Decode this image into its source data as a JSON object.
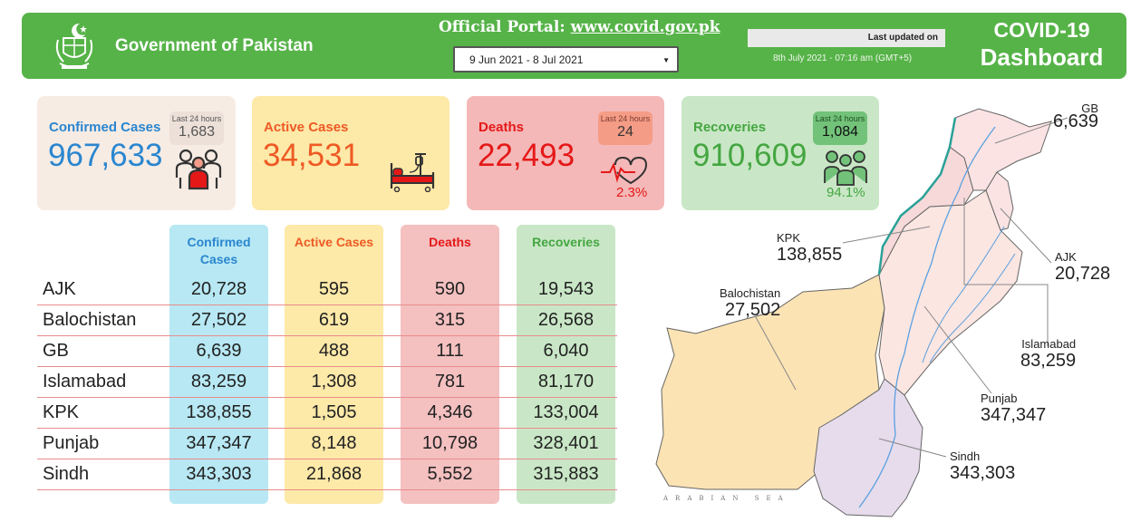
{
  "header": {
    "gov_title": "Government of Pakistan",
    "portal_label": "Official Portal:",
    "portal_url": "www.covid.gov.pk",
    "date_range": "9 Jun 2021 - 8 Jul 2021",
    "last_updated_label": "Last updated on",
    "last_updated_time": "8th July 2021 - 07:16 am (GMT+5)",
    "title_line1": "COVID-19",
    "title_line2": "Dashboard",
    "bg_color": "#56b348"
  },
  "cards": {
    "confirmed": {
      "label": "Confirmed Cases",
      "value": "967,633",
      "last24_label": "Last 24 hours",
      "last24_value": "1,683"
    },
    "active": {
      "label": "Active Cases",
      "value": "34,531"
    },
    "deaths": {
      "label": "Deaths",
      "value": "22,493",
      "last24_label": "Last 24 hours",
      "last24_value": "24",
      "percent": "2.3%"
    },
    "recoveries": {
      "label": "Recoveries",
      "value": "910,609",
      "last24_label": "Last 24 hours",
      "last24_value": "1,084",
      "percent": "94.1%"
    }
  },
  "table": {
    "headers": {
      "confirmed": "Confirmed Cases",
      "active": "Active Cases",
      "deaths": "Deaths",
      "recoveries": "Recoveries"
    },
    "rows": [
      {
        "region": "AJK",
        "confirmed": "20,728",
        "active": "595",
        "deaths": "590",
        "recoveries": "19,543"
      },
      {
        "region": "Balochistan",
        "confirmed": "27,502",
        "active": "619",
        "deaths": "315",
        "recoveries": "26,568"
      },
      {
        "region": "GB",
        "confirmed": "6,639",
        "active": "488",
        "deaths": "111",
        "recoveries": "6,040"
      },
      {
        "region": "Islamabad",
        "confirmed": "83,259",
        "active": "1,308",
        "deaths": "781",
        "recoveries": "81,170"
      },
      {
        "region": "KPK",
        "confirmed": "138,855",
        "active": "1,505",
        "deaths": "4,346",
        "recoveries": "133,004"
      },
      {
        "region": "Punjab",
        "confirmed": "347,347",
        "active": "8,148",
        "deaths": "10,798",
        "recoveries": "328,401"
      },
      {
        "region": "Sindh",
        "confirmed": "343,303",
        "active": "21,868",
        "deaths": "5,552",
        "recoveries": "315,883"
      }
    ]
  },
  "map": {
    "sea_label": "ARABIAN SEA",
    "labels": {
      "gb": {
        "name": "GB",
        "value": "6,639"
      },
      "kpk": {
        "name": "KPK",
        "value": "138,855"
      },
      "ajk": {
        "name": "AJK",
        "value": "20,728"
      },
      "balochistan": {
        "name": "Balochistan",
        "value": "27,502"
      },
      "islamabad": {
        "name": "Islamabad",
        "value": "83,259"
      },
      "punjab": {
        "name": "Punjab",
        "value": "347,347"
      },
      "sindh": {
        "name": "Sindh",
        "value": "343,303"
      }
    },
    "region_colors": {
      "balochistan": "#fbe3b4",
      "sindh": "#e6dcec",
      "punjab": "#fbe6e1",
      "kpk": "#f7d9d9",
      "gb": "#fbe3e3",
      "ajk": "#fbe3e3"
    }
  }
}
